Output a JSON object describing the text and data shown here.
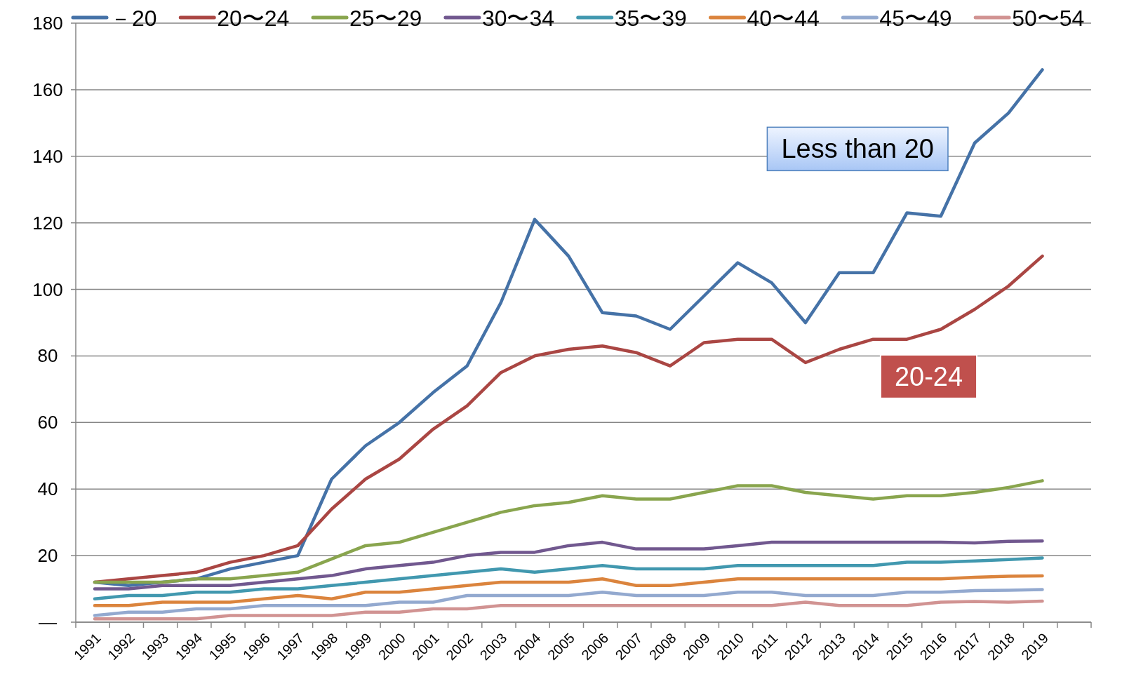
{
  "chart_data": {
    "type": "line",
    "categories": [
      "1991",
      "1992",
      "1993",
      "1994",
      "1995",
      "1996",
      "1997",
      "1998",
      "1999",
      "2000",
      "2001",
      "2002",
      "2003",
      "2004",
      "2005",
      "2006",
      "2007",
      "2008",
      "2009",
      "2010",
      "2011",
      "2012",
      "2013",
      "2014",
      "2015",
      "2016",
      "2017",
      "2018",
      "2019",
      null
    ],
    "series": [
      {
        "name": "－20",
        "color": "#4572a7",
        "values": [
          12,
          11,
          12,
          13,
          16,
          18,
          20,
          43,
          53,
          60,
          69,
          77,
          96,
          121,
          110,
          93,
          92,
          88,
          98,
          108,
          102,
          90,
          105,
          105,
          123,
          122,
          144,
          153,
          166,
          null
        ]
      },
      {
        "name": "20〜24",
        "color": "#aa4643",
        "values": [
          12,
          13,
          14,
          15,
          18,
          20,
          23,
          34,
          43,
          49,
          58,
          65,
          75,
          80,
          82,
          83,
          81,
          77,
          84,
          85,
          85,
          78,
          82,
          85,
          85,
          88,
          94,
          101,
          110,
          null
        ]
      },
      {
        "name": "25〜29",
        "color": "#89a54e",
        "values": [
          12,
          12,
          12,
          13,
          13,
          14,
          15,
          19,
          23,
          24,
          27,
          30,
          33,
          35,
          36,
          38,
          37,
          37,
          39,
          41,
          41,
          39,
          38,
          37,
          38,
          38,
          39,
          40.5,
          42.5,
          null
        ]
      },
      {
        "name": "30〜34",
        "color": "#71588f",
        "values": [
          10,
          10,
          11,
          11,
          11,
          12,
          13,
          14,
          16,
          17,
          18,
          20,
          21,
          21,
          23,
          24,
          22,
          22,
          22,
          23,
          24,
          24,
          24,
          24,
          24,
          24,
          23.8,
          24.3,
          24.4,
          null
        ]
      },
      {
        "name": "35〜39",
        "color": "#4198af",
        "values": [
          7,
          8,
          8,
          9,
          9,
          10,
          10,
          11,
          12,
          13,
          14,
          15,
          16,
          15,
          16,
          17,
          16,
          16,
          16,
          17,
          17,
          17,
          17,
          17,
          18,
          18,
          18.4,
          18.8,
          19.3,
          null
        ]
      },
      {
        "name": "40〜44",
        "color": "#db843d",
        "values": [
          5,
          5,
          6,
          6,
          6,
          7,
          8,
          7,
          9,
          9,
          10,
          11,
          12,
          12,
          12,
          13,
          11,
          11,
          12,
          13,
          13,
          13,
          13,
          13,
          13,
          13,
          13.5,
          13.8,
          13.9,
          null
        ]
      },
      {
        "name": "45〜49",
        "color": "#93a9cf",
        "values": [
          2,
          3,
          3,
          4,
          4,
          5,
          5,
          5,
          5,
          6,
          6,
          8,
          8,
          8,
          8,
          9,
          8,
          8,
          8,
          9,
          9,
          8,
          8,
          8,
          9,
          9,
          9.5,
          9.6,
          9.8,
          null
        ]
      },
      {
        "name": "50〜54",
        "color": "#d19392",
        "values": [
          1,
          1,
          1,
          1,
          2,
          2,
          2,
          2,
          3,
          3,
          4,
          4,
          5,
          5,
          5,
          5,
          5,
          5,
          5,
          5,
          5,
          6,
          5,
          5,
          5,
          6,
          6.2,
          6,
          6.3,
          null
        ]
      }
    ],
    "ylim": [
      0,
      180
    ],
    "yticks": [
      {
        "value": 0,
        "label": "—"
      },
      20,
      40,
      60,
      80,
      100,
      120,
      140,
      160,
      180
    ],
    "grid": "y",
    "legend": "top",
    "annotations": [
      "Less than 20",
      "20-24"
    ]
  }
}
